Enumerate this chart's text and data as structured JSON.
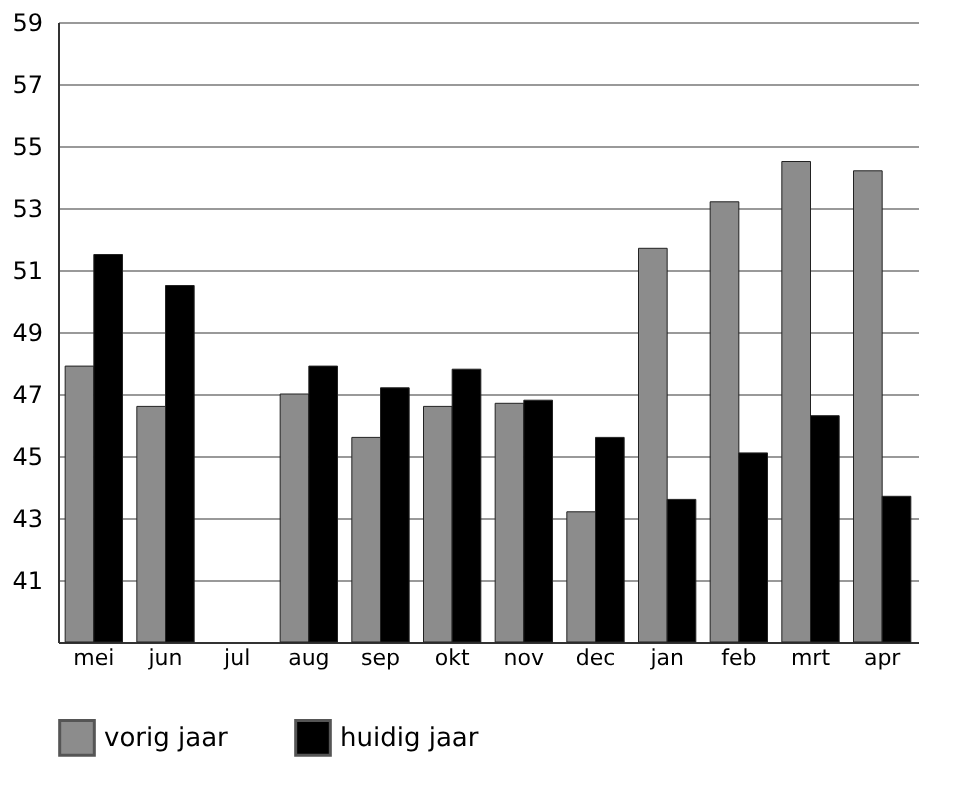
{
  "chart_data": {
    "type": "bar",
    "categories": [
      "mei",
      "jun",
      "jul",
      "aug",
      "sep",
      "okt",
      "nov",
      "dec",
      "jan",
      "feb",
      "mrt",
      "apr"
    ],
    "series": [
      {
        "name": "vorig jaar",
        "color": "#8c8c8c",
        "values": [
          47.9,
          46.6,
          null,
          47.0,
          45.6,
          46.6,
          46.7,
          43.2,
          51.7,
          53.2,
          54.5,
          54.2
        ]
      },
      {
        "name": "huidig jaar",
        "color": "#000000",
        "values": [
          51.5,
          50.5,
          null,
          47.9,
          47.2,
          47.8,
          46.8,
          45.6,
          43.6,
          45.1,
          46.3,
          43.7
        ]
      }
    ],
    "ylim": [
      39,
      59
    ],
    "yticks": [
      41,
      43,
      45,
      47,
      49,
      51,
      53,
      55,
      57,
      59
    ],
    "grid": "y",
    "legend": "bottom"
  }
}
